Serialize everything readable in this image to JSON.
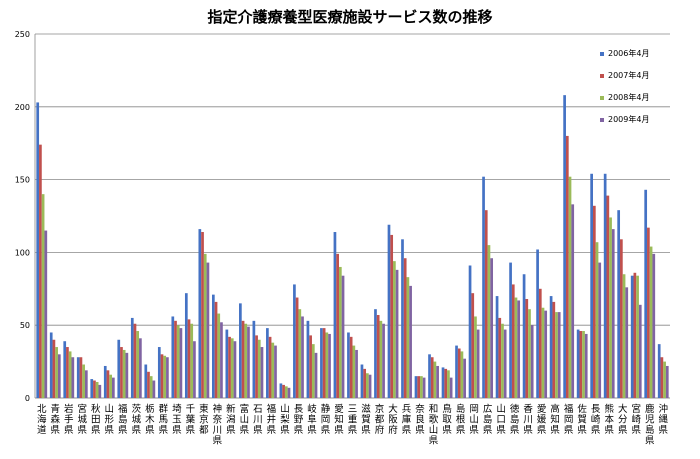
{
  "chart_data": {
    "type": "bar",
    "title": "指定介護療養型医療施設サービス数の推移",
    "xlabel": "",
    "ylabel": "",
    "ylim": [
      0,
      250
    ],
    "yticks": [
      0,
      50,
      100,
      150,
      200,
      250
    ],
    "grid": true,
    "legend_position": "top-right",
    "categories": [
      "北海道",
      "青森県",
      "岩手県",
      "宮城県",
      "秋田県",
      "山形県",
      "福島県",
      "茨城県",
      "栃木県",
      "群馬県",
      "埼玉県",
      "千葉県",
      "東京都",
      "神奈川県",
      "新潟県",
      "富山県",
      "石川県",
      "福井県",
      "山梨県",
      "長野県",
      "岐阜県",
      "静岡県",
      "愛知県",
      "三重県",
      "滋賀県",
      "京都府",
      "大阪府",
      "兵庫県",
      "奈良県",
      "和歌山県",
      "鳥取県",
      "島根県",
      "岡山県",
      "広島県",
      "山口県",
      "徳島県",
      "香川県",
      "愛媛県",
      "高知県",
      "福岡県",
      "佐賀県",
      "長崎県",
      "熊本県",
      "大分県",
      "宮崎県",
      "鹿児島県",
      "沖縄県"
    ],
    "series": [
      {
        "name": "2006年4月",
        "color": "#4472C4",
        "values": [
          203,
          45,
          39,
          28,
          13,
          22,
          40,
          55,
          23,
          35,
          56,
          72,
          116,
          71,
          47,
          65,
          53,
          48,
          10,
          78,
          53,
          48,
          114,
          45,
          23,
          61,
          119,
          109,
          15,
          30,
          21,
          36,
          91,
          152,
          70,
          93,
          85,
          102,
          70,
          208,
          47,
          154,
          154,
          129,
          84,
          143,
          37
        ]
      },
      {
        "name": "2007年4月",
        "color": "#C0504D",
        "values": [
          174,
          40,
          35,
          28,
          12,
          19,
          35,
          51,
          18,
          30,
          53,
          54,
          114,
          66,
          42,
          53,
          43,
          42,
          9,
          69,
          43,
          48,
          99,
          42,
          20,
          57,
          112,
          96,
          15,
          28,
          20,
          34,
          72,
          129,
          55,
          78,
          68,
          75,
          66,
          180,
          46,
          132,
          139,
          109,
          86,
          117,
          28
        ]
      },
      {
        "name": "2008年4月",
        "color": "#9BBB59",
        "values": [
          140,
          35,
          32,
          23,
          11,
          16,
          33,
          46,
          15,
          29,
          50,
          51,
          99,
          58,
          41,
          51,
          40,
          38,
          8,
          61,
          37,
          45,
          90,
          36,
          17,
          53,
          94,
          83,
          15,
          25,
          19,
          32,
          56,
          105,
          51,
          69,
          61,
          62,
          59,
          152,
          46,
          107,
          124,
          85,
          84,
          104,
          25
        ]
      },
      {
        "name": "2009年4月",
        "color": "#8064A2",
        "values": [
          115,
          30,
          28,
          19,
          9,
          14,
          31,
          41,
          12,
          28,
          48,
          39,
          93,
          52,
          39,
          49,
          35,
          36,
          7,
          56,
          31,
          44,
          84,
          33,
          16,
          51,
          88,
          77,
          14,
          22,
          14,
          27,
          47,
          96,
          47,
          67,
          50,
          60,
          59,
          133,
          44,
          93,
          116,
          76,
          64,
          99,
          22
        ]
      }
    ]
  }
}
